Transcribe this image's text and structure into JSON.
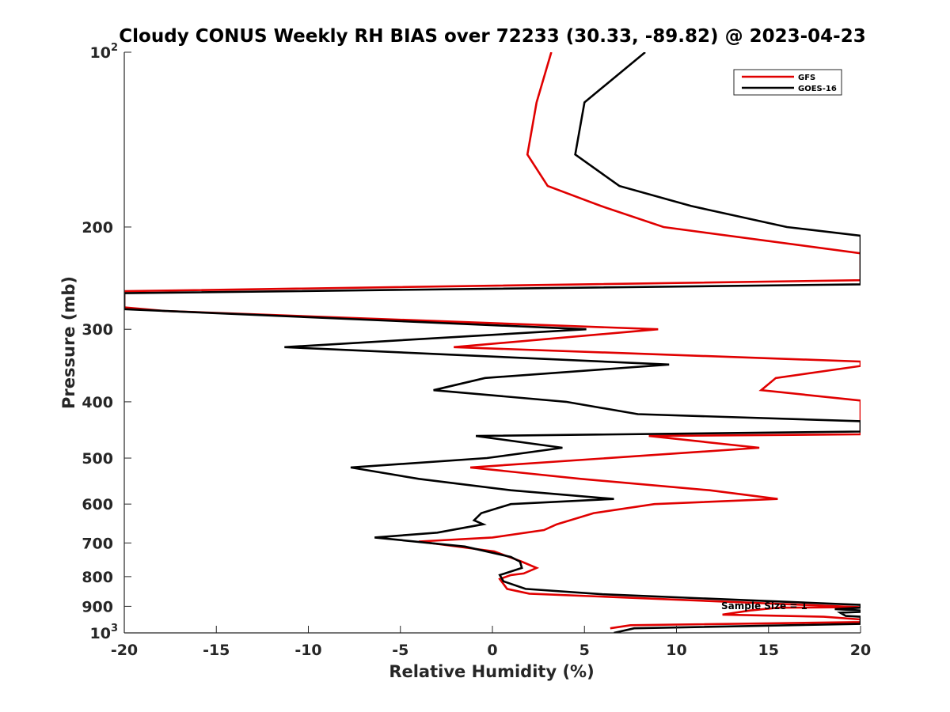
{
  "chart_data": {
    "type": "line",
    "title": "Cloudy CONUS Weekly RH BIAS over 72233 (30.33, -89.82) @ 2023-04-23",
    "xlabel": "Relative Humidity (%)",
    "ylabel": "Pressure (mb)",
    "xlim": [
      -20,
      20
    ],
    "ylim": [
      100,
      1000
    ],
    "yscale": "log",
    "y_reversed": true,
    "xticks": [
      -20,
      -15,
      -10,
      -5,
      0,
      5,
      10,
      15,
      20
    ],
    "xtick_labels": [
      "-20",
      "-15",
      "-10",
      "-5",
      "0",
      "5",
      "10",
      "15",
      "20"
    ],
    "yticks": [
      {
        "value": 100,
        "label": "10",
        "sup": "2"
      },
      {
        "value": 200,
        "label": "200",
        "sup": ""
      },
      {
        "value": 300,
        "label": "300",
        "sup": ""
      },
      {
        "value": 400,
        "label": "400",
        "sup": ""
      },
      {
        "value": 500,
        "label": "500",
        "sup": ""
      },
      {
        "value": 600,
        "label": "600",
        "sup": ""
      },
      {
        "value": 700,
        "label": "700",
        "sup": ""
      },
      {
        "value": 800,
        "label": "800",
        "sup": ""
      },
      {
        "value": 900,
        "label": "900",
        "sup": ""
      },
      {
        "value": 1000,
        "label": "10",
        "sup": "3"
      }
    ],
    "legend_position": "top-right",
    "annotation": "Sample Size = 1",
    "series": [
      {
        "name": "GFS",
        "color": "#e00000",
        "points": [
          [
            3.2,
            100
          ],
          [
            2.4,
            122
          ],
          [
            1.9,
            150
          ],
          [
            3.0,
            170
          ],
          [
            5.9,
            184
          ],
          [
            9.3,
            200
          ],
          [
            20,
            222
          ],
          [
            20,
            247
          ],
          [
            -20,
            258
          ],
          [
            -20,
            275
          ],
          [
            -17.8,
            279
          ],
          [
            9.0,
            300
          ],
          [
            -2.1,
            322
          ],
          [
            20,
            341
          ],
          [
            20,
            347
          ],
          [
            15.4,
            364
          ],
          [
            14.6,
            382
          ],
          [
            20,
            398
          ],
          [
            20,
            455
          ],
          [
            8.5,
            458
          ],
          [
            14.5,
            480
          ],
          [
            -1.2,
            519
          ],
          [
            4.8,
            543
          ],
          [
            11.8,
            568
          ],
          [
            15.5,
            588
          ],
          [
            8.8,
            600
          ],
          [
            5.5,
            622
          ],
          [
            3.5,
            650
          ],
          [
            2.8,
            665
          ],
          [
            0,
            685
          ],
          [
            -4,
            696
          ],
          [
            0.1,
            724
          ],
          [
            1.6,
            754
          ],
          [
            2.4,
            773
          ],
          [
            1.7,
            790
          ],
          [
            1.0,
            795
          ],
          [
            0.4,
            808
          ],
          [
            0.8,
            840
          ],
          [
            2.0,
            856
          ],
          [
            20,
            903
          ],
          [
            15.5,
            905
          ],
          [
            14.0,
            915
          ],
          [
            12.5,
            930
          ],
          [
            18.0,
            938
          ],
          [
            20,
            948
          ],
          [
            20,
            958
          ],
          [
            7.5,
            970
          ],
          [
            6.4,
            982
          ]
        ]
      },
      {
        "name": "GOES-16",
        "color": "#000000",
        "points": [
          [
            8.3,
            100
          ],
          [
            5.0,
            122
          ],
          [
            4.5,
            150
          ],
          [
            6.9,
            170
          ],
          [
            10.8,
            184
          ],
          [
            16.0,
            200
          ],
          [
            20,
            207
          ],
          [
            20,
            251
          ],
          [
            -20,
            260
          ],
          [
            -20,
            277
          ],
          [
            5.1,
            300
          ],
          [
            -11.3,
            322
          ],
          [
            9.6,
            345
          ],
          [
            -0.4,
            364
          ],
          [
            -3.2,
            382
          ],
          [
            4.0,
            400
          ],
          [
            7.9,
            420
          ],
          [
            20,
            432
          ],
          [
            20,
            450
          ],
          [
            -0.9,
            458
          ],
          [
            3.8,
            480
          ],
          [
            -0.3,
            500
          ],
          [
            -7.7,
            519
          ],
          [
            -4.0,
            543
          ],
          [
            1.0,
            568
          ],
          [
            6.6,
            588
          ],
          [
            1.0,
            600
          ],
          [
            -0.6,
            622
          ],
          [
            -1.0,
            640
          ],
          [
            -0.5,
            650
          ],
          [
            -3.0,
            672
          ],
          [
            -6.4,
            685
          ],
          [
            -1.5,
            710
          ],
          [
            1.0,
            740
          ],
          [
            1.5,
            754
          ],
          [
            1.6,
            773
          ],
          [
            0.4,
            795
          ],
          [
            0.6,
            815
          ],
          [
            1.8,
            840
          ],
          [
            6.0,
            858
          ],
          [
            20,
            895
          ],
          [
            20,
            905
          ],
          [
            18.6,
            910
          ],
          [
            20,
            915
          ],
          [
            20,
            920
          ],
          [
            18.9,
            923
          ],
          [
            19.2,
            935
          ],
          [
            20,
            938
          ],
          [
            20,
            958
          ],
          [
            20,
            965
          ],
          [
            7.7,
            982
          ],
          [
            6.6,
            1000
          ]
        ]
      }
    ]
  }
}
